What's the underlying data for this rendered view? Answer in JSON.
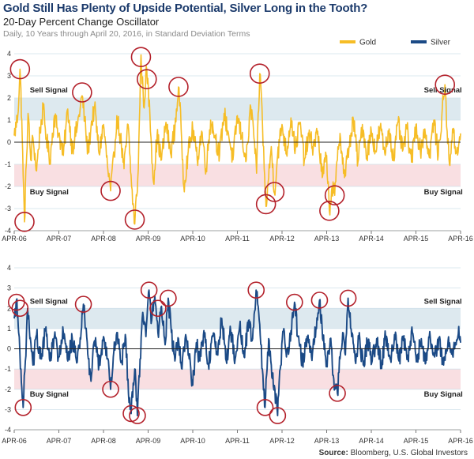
{
  "header": {
    "title": "Gold Still Has Plenty of Upside Potential, Silver Long in the Tooth?",
    "subtitle": "20-Day Percent Change Oscillator",
    "note": "Daily, 10 Years through April 20, 2016, in Standard Deviation Terms"
  },
  "footer": {
    "source_label": "Source:",
    "source_text": " Bloomberg, U.S. Global Investors"
  },
  "colors": {
    "gold": "#f6bd26",
    "silver": "#1b4a86",
    "sell_band": "#dde9ef",
    "buy_band": "#f9dfe2",
    "circle": "#b3202a",
    "grid": "#cfe0ea",
    "zero": "#222222"
  },
  "chart_data": [
    {
      "type": "line",
      "series": [
        {
          "name": "Gold"
        }
      ],
      "x": [
        "APR-06",
        "APR-07",
        "APR-08",
        "APR-09",
        "APR-10",
        "APR-11",
        "APR-12",
        "APR-13",
        "APR-14",
        "APR-15",
        "APR-16"
      ],
      "ylim": [
        -4,
        4
      ],
      "yticks": [
        "4",
        "3",
        "2",
        "1",
        "0",
        "-1",
        "-2",
        "-3",
        "-4"
      ],
      "grid": true,
      "legend_position": "top-right",
      "bands": {
        "sell": [
          1,
          2
        ],
        "buy": [
          -2,
          -1
        ]
      },
      "annotations": [
        {
          "text": "Sell Signal",
          "x": 0.35,
          "y": 2.35
        },
        {
          "text": "Buy Signal",
          "x": 0.35,
          "y": -2.25
        },
        {
          "text": "Sell Signal",
          "x": 9.18,
          "y": 2.35
        },
        {
          "text": "Buy Signal",
          "x": 9.18,
          "y": -2.25
        }
      ],
      "anchors": [
        [
          0,
          0.3
        ],
        [
          0.08,
          1.2
        ],
        [
          0.13,
          3.3
        ],
        [
          0.17,
          1.0
        ],
        [
          0.2,
          -1.5
        ],
        [
          0.23,
          -3.6
        ],
        [
          0.27,
          -1.0
        ],
        [
          0.31,
          1.3
        ],
        [
          0.37,
          -0.8
        ],
        [
          0.42,
          0.2
        ],
        [
          0.5,
          -1.3
        ],
        [
          0.58,
          0.6
        ],
        [
          0.65,
          1.5
        ],
        [
          0.72,
          0.2
        ],
        [
          0.8,
          -0.8
        ],
        [
          0.9,
          1.2
        ],
        [
          1.0,
          0.4
        ],
        [
          1.1,
          -0.6
        ],
        [
          1.2,
          1.5
        ],
        [
          1.3,
          -0.3
        ],
        [
          1.42,
          0.8
        ],
        [
          1.52,
          2.1
        ],
        [
          1.58,
          1.0
        ],
        [
          1.65,
          -0.5
        ],
        [
          1.72,
          0.7
        ],
        [
          1.8,
          1.6
        ],
        [
          1.9,
          -0.5
        ],
        [
          2.0,
          0.8
        ],
        [
          2.1,
          -1.3
        ],
        [
          2.16,
          -2.2
        ],
        [
          2.24,
          -0.6
        ],
        [
          2.3,
          1.2
        ],
        [
          2.38,
          0.2
        ],
        [
          2.46,
          -1.2
        ],
        [
          2.55,
          0.8
        ],
        [
          2.63,
          -2.0
        ],
        [
          2.7,
          -3.7
        ],
        [
          2.78,
          -1.2
        ],
        [
          2.84,
          4.0
        ],
        [
          2.9,
          1.6
        ],
        [
          2.97,
          3.3
        ],
        [
          3.04,
          1.2
        ],
        [
          3.12,
          -1.8
        ],
        [
          3.2,
          0.3
        ],
        [
          3.3,
          -0.8
        ],
        [
          3.4,
          0.9
        ],
        [
          3.5,
          -0.5
        ],
        [
          3.6,
          0.6
        ],
        [
          3.68,
          2.5
        ],
        [
          3.74,
          0.6
        ],
        [
          3.8,
          -2.0
        ],
        [
          3.9,
          -0.4
        ],
        [
          4.0,
          0.6
        ],
        [
          4.1,
          -0.8
        ],
        [
          4.2,
          0.5
        ],
        [
          4.3,
          -1.2
        ],
        [
          4.4,
          1.0
        ],
        [
          4.5,
          0.3
        ],
        [
          4.6,
          -0.6
        ],
        [
          4.7,
          1.3
        ],
        [
          4.8,
          0.4
        ],
        [
          4.9,
          -0.8
        ],
        [
          5.0,
          1.2
        ],
        [
          5.1,
          0.2
        ],
        [
          5.2,
          -0.8
        ],
        [
          5.3,
          1.6
        ],
        [
          5.36,
          0.6
        ],
        [
          5.43,
          -1.4
        ],
        [
          5.5,
          3.1
        ],
        [
          5.55,
          1.6
        ],
        [
          5.6,
          -1.2
        ],
        [
          5.64,
          -2.9
        ],
        [
          5.7,
          -1.6
        ],
        [
          5.76,
          -0.2
        ],
        [
          5.83,
          -2.3
        ],
        [
          5.9,
          -0.6
        ],
        [
          6.0,
          0.8
        ],
        [
          6.1,
          -0.5
        ],
        [
          6.2,
          1.1
        ],
        [
          6.3,
          -0.3
        ],
        [
          6.4,
          0.9
        ],
        [
          6.5,
          -0.8
        ],
        [
          6.6,
          0.3
        ],
        [
          6.7,
          -0.2
        ],
        [
          6.8,
          0.5
        ],
        [
          6.9,
          -1.6
        ],
        [
          7.0,
          -0.6
        ],
        [
          7.06,
          -3.1
        ],
        [
          7.12,
          -2.0
        ],
        [
          7.18,
          -2.4
        ],
        [
          7.24,
          -0.8
        ],
        [
          7.3,
          0.4
        ],
        [
          7.4,
          -1.6
        ],
        [
          7.5,
          -0.2
        ],
        [
          7.6,
          1.0
        ],
        [
          7.7,
          -0.9
        ],
        [
          7.8,
          0.8
        ],
        [
          7.9,
          -0.6
        ],
        [
          8.0,
          0.5
        ],
        [
          8.1,
          -0.4
        ],
        [
          8.2,
          0.7
        ],
        [
          8.3,
          -0.5
        ],
        [
          8.4,
          0.6
        ],
        [
          8.5,
          -0.8
        ],
        [
          8.6,
          0.9
        ],
        [
          8.7,
          -0.4
        ],
        [
          8.8,
          0.6
        ],
        [
          8.9,
          -0.9
        ],
        [
          9.0,
          0.8
        ],
        [
          9.1,
          -0.4
        ],
        [
          9.2,
          0.6
        ],
        [
          9.3,
          -0.7
        ],
        [
          9.4,
          1.0
        ],
        [
          9.5,
          -0.6
        ],
        [
          9.58,
          1.2
        ],
        [
          9.65,
          2.6
        ],
        [
          9.7,
          0.5
        ],
        [
          9.75,
          -1.0
        ],
        [
          9.82,
          0.6
        ],
        [
          9.9,
          -0.5
        ],
        [
          10.0,
          0.4
        ]
      ],
      "circles": [
        [
          0.13,
          3.3
        ],
        [
          0.23,
          -3.6
        ],
        [
          1.52,
          2.25
        ],
        [
          2.16,
          -2.2
        ],
        [
          2.7,
          -3.5
        ],
        [
          2.84,
          3.85
        ],
        [
          2.97,
          2.85
        ],
        [
          3.68,
          2.5
        ],
        [
          5.5,
          3.1
        ],
        [
          5.64,
          -2.8
        ],
        [
          5.83,
          -2.25
        ],
        [
          7.06,
          -3.1
        ],
        [
          7.18,
          -2.4
        ],
        [
          9.65,
          2.6
        ]
      ]
    },
    {
      "type": "line",
      "series": [
        {
          "name": "Silver"
        }
      ],
      "x": [
        "APR-06",
        "APR-07",
        "APR-08",
        "APR-09",
        "APR-10",
        "APR-11",
        "APR-12",
        "APR-13",
        "APR-14",
        "APR-15",
        "APR-16"
      ],
      "ylim": [
        -4,
        4
      ],
      "yticks": [
        "4",
        "3",
        "2",
        "1",
        "0",
        "-1",
        "-2",
        "-3",
        "-4"
      ],
      "grid": true,
      "legend_position": "top-right",
      "bands": {
        "sell": [
          1,
          2
        ],
        "buy": [
          -2,
          -1
        ]
      },
      "annotations": [
        {
          "text": "Sell Signal",
          "x": 0.35,
          "y": 2.35
        },
        {
          "text": "Buy Signal",
          "x": 0.35,
          "y": -2.25
        },
        {
          "text": "Sell Signal",
          "x": 9.18,
          "y": 2.35
        },
        {
          "text": "Buy Signal",
          "x": 9.18,
          "y": -2.25
        }
      ],
      "anchors": [
        [
          0,
          1.5
        ],
        [
          0.05,
          2.4
        ],
        [
          0.1,
          0.8
        ],
        [
          0.15,
          -1.0
        ],
        [
          0.2,
          -2.9
        ],
        [
          0.25,
          -0.6
        ],
        [
          0.3,
          2.0
        ],
        [
          0.35,
          0.5
        ],
        [
          0.42,
          -0.8
        ],
        [
          0.5,
          0.7
        ],
        [
          0.6,
          -0.5
        ],
        [
          0.7,
          0.9
        ],
        [
          0.8,
          -0.6
        ],
        [
          0.9,
          0.6
        ],
        [
          1.0,
          -0.4
        ],
        [
          1.1,
          0.8
        ],
        [
          1.2,
          -0.6
        ],
        [
          1.3,
          0.5
        ],
        [
          1.4,
          -0.7
        ],
        [
          1.5,
          0.9
        ],
        [
          1.55,
          2.2
        ],
        [
          1.6,
          1.0
        ],
        [
          1.66,
          -0.5
        ],
        [
          1.72,
          -1.6
        ],
        [
          1.8,
          0.4
        ],
        [
          1.9,
          -0.8
        ],
        [
          2.0,
          0.6
        ],
        [
          2.1,
          -0.5
        ],
        [
          2.16,
          -2.0
        ],
        [
          2.22,
          -0.4
        ],
        [
          2.3,
          0.8
        ],
        [
          2.4,
          -0.6
        ],
        [
          2.5,
          0.5
        ],
        [
          2.56,
          -2.2
        ],
        [
          2.62,
          -3.2
        ],
        [
          2.7,
          -1.0
        ],
        [
          2.76,
          -3.3
        ],
        [
          2.82,
          -0.5
        ],
        [
          2.88,
          1.8
        ],
        [
          2.95,
          0.6
        ],
        [
          3.02,
          2.9
        ],
        [
          3.08,
          1.4
        ],
        [
          3.15,
          2.6
        ],
        [
          3.22,
          0.8
        ],
        [
          3.3,
          2.1
        ],
        [
          3.38,
          0.2
        ],
        [
          3.45,
          2.5
        ],
        [
          3.52,
          0.8
        ],
        [
          3.6,
          -0.6
        ],
        [
          3.68,
          0.5
        ],
        [
          3.76,
          -1.0
        ],
        [
          3.84,
          0.7
        ],
        [
          3.92,
          -0.5
        ],
        [
          4.0,
          -1.8
        ],
        [
          4.08,
          0.3
        ],
        [
          4.16,
          -0.6
        ],
        [
          4.25,
          0.9
        ],
        [
          4.35,
          -0.8
        ],
        [
          4.45,
          0.6
        ],
        [
          4.55,
          -0.3
        ],
        [
          4.65,
          1.5
        ],
        [
          4.75,
          -0.6
        ],
        [
          4.85,
          0.9
        ],
        [
          4.95,
          -0.5
        ],
        [
          5.05,
          1.1
        ],
        [
          5.15,
          -0.4
        ],
        [
          5.25,
          1.4
        ],
        [
          5.33,
          0.4
        ],
        [
          5.42,
          2.9
        ],
        [
          5.5,
          1.2
        ],
        [
          5.56,
          -1.0
        ],
        [
          5.62,
          -2.9
        ],
        [
          5.7,
          0.5
        ],
        [
          5.76,
          -0.8
        ],
        [
          5.84,
          -2.0
        ],
        [
          5.9,
          -3.3
        ],
        [
          5.96,
          -1.0
        ],
        [
          6.04,
          1.0
        ],
        [
          6.1,
          -0.4
        ],
        [
          6.2,
          0.9
        ],
        [
          6.28,
          2.3
        ],
        [
          6.36,
          0.6
        ],
        [
          6.46,
          -0.8
        ],
        [
          6.56,
          0.6
        ],
        [
          6.66,
          -0.4
        ],
        [
          6.76,
          1.0
        ],
        [
          6.84,
          2.4
        ],
        [
          6.92,
          0.4
        ],
        [
          7.0,
          -0.8
        ],
        [
          7.08,
          0.5
        ],
        [
          7.16,
          -1.5
        ],
        [
          7.24,
          -2.2
        ],
        [
          7.3,
          -0.5
        ],
        [
          7.36,
          0.8
        ],
        [
          7.42,
          -0.3
        ],
        [
          7.48,
          2.5
        ],
        [
          7.56,
          0.6
        ],
        [
          7.64,
          -0.6
        ],
        [
          7.72,
          0.5
        ],
        [
          7.82,
          -0.8
        ],
        [
          7.92,
          0.4
        ],
        [
          8.02,
          -0.6
        ],
        [
          8.12,
          0.5
        ],
        [
          8.22,
          -0.8
        ],
        [
          8.32,
          0.6
        ],
        [
          8.42,
          -0.5
        ],
        [
          8.52,
          0.7
        ],
        [
          8.62,
          -0.6
        ],
        [
          8.72,
          0.4
        ],
        [
          8.82,
          -0.5
        ],
        [
          8.92,
          0.8
        ],
        [
          9.02,
          -0.6
        ],
        [
          9.12,
          0.5
        ],
        [
          9.22,
          -0.7
        ],
        [
          9.32,
          0.6
        ],
        [
          9.42,
          -0.4
        ],
        [
          9.52,
          0.5
        ],
        [
          9.62,
          -0.8
        ],
        [
          9.72,
          0.4
        ],
        [
          9.82,
          -0.3
        ],
        [
          9.9,
          0.2
        ],
        [
          9.96,
          1.1
        ],
        [
          10.0,
          0.3
        ]
      ],
      "circles": [
        [
          0.05,
          2.3
        ],
        [
          0.13,
          2.0
        ],
        [
          0.2,
          -2.9
        ],
        [
          1.55,
          2.2
        ],
        [
          2.16,
          -2.0
        ],
        [
          2.62,
          -3.2
        ],
        [
          2.76,
          -3.3
        ],
        [
          3.02,
          2.9
        ],
        [
          3.22,
          2.0
        ],
        [
          3.45,
          2.5
        ],
        [
          5.42,
          2.9
        ],
        [
          5.62,
          -2.9
        ],
        [
          5.9,
          -3.3
        ],
        [
          6.28,
          2.3
        ],
        [
          6.84,
          2.4
        ],
        [
          7.24,
          -2.2
        ],
        [
          7.48,
          2.5
        ]
      ]
    }
  ]
}
